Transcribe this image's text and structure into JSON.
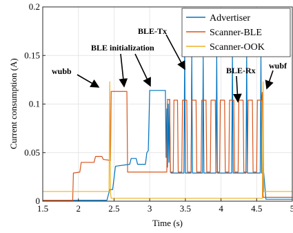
{
  "chart_data": {
    "type": "line",
    "title": "",
    "xlabel": "Time (s)",
    "ylabel": "Current consumption (A)",
    "xlim": [
      1.5,
      5
    ],
    "ylim": [
      0,
      0.2
    ],
    "xticks": [
      "1.5",
      "2",
      "2.5",
      "3",
      "3.5",
      "4",
      "4.5",
      "5"
    ],
    "yticks": [
      "0",
      "0.05",
      "0.1",
      "0.15",
      "0.2"
    ],
    "grid": true,
    "legend_position": "top-right",
    "series": [
      {
        "name": "Advertiser",
        "color": "#0072bd",
        "points": [
          [
            1.5,
            0.001
          ],
          [
            2.4,
            0.001
          ],
          [
            2.44,
            0.012
          ],
          [
            2.48,
            0.012
          ],
          [
            2.52,
            0.036
          ],
          [
            2.72,
            0.038
          ],
          [
            2.74,
            0.044
          ],
          [
            2.81,
            0.044
          ],
          [
            2.83,
            0.038
          ],
          [
            2.94,
            0.038
          ],
          [
            2.96,
            0.05
          ],
          [
            2.98,
            0.052
          ],
          [
            3.0,
            0.114
          ],
          [
            3.22,
            0.114
          ],
          [
            3.23,
            0.045
          ],
          [
            3.24,
            0.095
          ],
          [
            3.25,
            0.035
          ],
          [
            3.26,
            0.1
          ],
          [
            3.27,
            0.04
          ],
          [
            3.28,
            0.105
          ],
          [
            3.29,
            0.03
          ],
          [
            3.3,
            0.029
          ],
          [
            3.48,
            0.029
          ],
          [
            3.49,
            0.15
          ],
          [
            3.5,
            0.029
          ],
          [
            3.58,
            0.029
          ],
          [
            3.59,
            0.15
          ],
          [
            3.6,
            0.029
          ],
          [
            3.74,
            0.029
          ],
          [
            3.75,
            0.148
          ],
          [
            3.76,
            0.029
          ],
          [
            3.93,
            0.029
          ],
          [
            3.94,
            0.15
          ],
          [
            3.95,
            0.029
          ],
          [
            4.15,
            0.029
          ],
          [
            4.16,
            0.15
          ],
          [
            4.17,
            0.029
          ],
          [
            4.35,
            0.029
          ],
          [
            4.36,
            0.15
          ],
          [
            4.37,
            0.029
          ],
          [
            4.55,
            0.029
          ],
          [
            4.56,
            0.15
          ],
          [
            4.57,
            0.029
          ],
          [
            4.6,
            0.029
          ],
          [
            4.63,
            0.002
          ],
          [
            5.0,
            0.002
          ]
        ]
      },
      {
        "name": "Scanner-BLE",
        "color": "#d95319",
        "points": [
          [
            1.5,
            0.001
          ],
          [
            1.92,
            0.001
          ],
          [
            1.93,
            0.029
          ],
          [
            2.02,
            0.03
          ],
          [
            2.04,
            0.04
          ],
          [
            2.22,
            0.04
          ],
          [
            2.24,
            0.046
          ],
          [
            2.33,
            0.046
          ],
          [
            2.35,
            0.043
          ],
          [
            2.45,
            0.042
          ],
          [
            2.46,
            0.113
          ],
          [
            2.68,
            0.113
          ],
          [
            2.69,
            0.03
          ],
          [
            3.24,
            0.03
          ],
          [
            3.25,
            0.105
          ],
          [
            3.28,
            0.104
          ],
          [
            3.29,
            0.03
          ],
          [
            3.33,
            0.03
          ],
          [
            3.34,
            0.104
          ],
          [
            3.39,
            0.104
          ],
          [
            3.4,
            0.03
          ],
          [
            3.45,
            0.03
          ],
          [
            3.46,
            0.104
          ],
          [
            3.52,
            0.104
          ],
          [
            3.53,
            0.03
          ],
          [
            3.58,
            0.03
          ],
          [
            3.59,
            0.104
          ],
          [
            3.65,
            0.104
          ],
          [
            3.66,
            0.03
          ],
          [
            3.72,
            0.03
          ],
          [
            3.73,
            0.104
          ],
          [
            3.79,
            0.104
          ],
          [
            3.8,
            0.03
          ],
          [
            3.85,
            0.03
          ],
          [
            3.86,
            0.104
          ],
          [
            3.92,
            0.104
          ],
          [
            3.93,
            0.03
          ],
          [
            3.98,
            0.03
          ],
          [
            3.99,
            0.104
          ],
          [
            4.05,
            0.104
          ],
          [
            4.06,
            0.03
          ],
          [
            4.11,
            0.03
          ],
          [
            4.12,
            0.104
          ],
          [
            4.18,
            0.104
          ],
          [
            4.19,
            0.03
          ],
          [
            4.24,
            0.03
          ],
          [
            4.25,
            0.104
          ],
          [
            4.31,
            0.104
          ],
          [
            4.32,
            0.03
          ],
          [
            4.37,
            0.03
          ],
          [
            4.38,
            0.104
          ],
          [
            4.44,
            0.104
          ],
          [
            4.45,
            0.03
          ],
          [
            4.5,
            0.03
          ],
          [
            4.51,
            0.104
          ],
          [
            4.57,
            0.104
          ],
          [
            4.58,
            0.112
          ],
          [
            4.59,
            0.004
          ],
          [
            5.0,
            0.004
          ]
        ]
      },
      {
        "name": "Scanner-OOK",
        "color": "#edb120",
        "points": [
          [
            1.5,
            0.01
          ],
          [
            2.43,
            0.01
          ],
          [
            2.44,
            0.123
          ],
          [
            2.45,
            0.008
          ],
          [
            2.46,
            0.003
          ],
          [
            4.58,
            0.003
          ],
          [
            4.59,
            0.123
          ],
          [
            4.6,
            0.01
          ],
          [
            5.0,
            0.01
          ]
        ]
      }
    ],
    "annotations": [
      "wubb",
      "BLE initialization",
      "BLE-Tx",
      "BLE-Rx",
      "wubf"
    ]
  }
}
